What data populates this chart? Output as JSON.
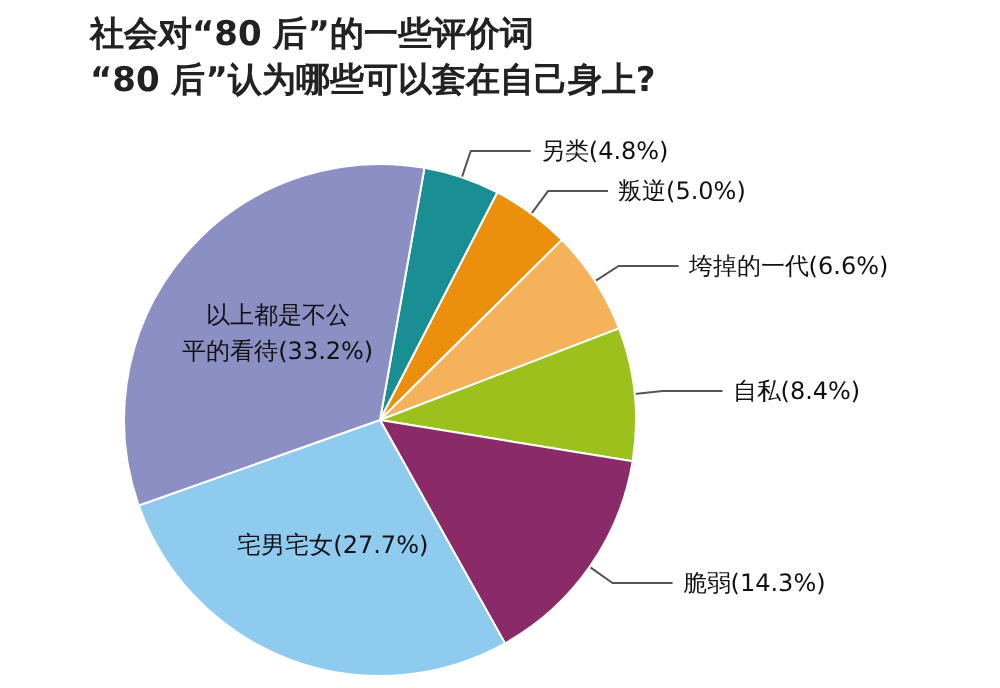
{
  "chart_data": {
    "type": "pie",
    "title": "社会对“80 后”的一些评价词",
    "subtitle": "“80 后”认为哪些可以套在自己身上?",
    "categories": [
      "另类",
      "叛逆",
      "垮掉的一代",
      "自私",
      "脆弱",
      "宅男宅女",
      "以上都是不公平的看待"
    ],
    "values": [
      4.8,
      5.0,
      6.6,
      8.4,
      14.3,
      27.7,
      33.2
    ],
    "value_labels": [
      "(4.8%)",
      "(5.0%)",
      "(6.6%)",
      "(8.4%)",
      "(14.3%)",
      "(27.7%)",
      "(33.2%)"
    ],
    "colors": [
      "#1a8f93",
      "#ec8f0c",
      "#f4b25a",
      "#9dc11c",
      "#8b2a68",
      "#8ecbef",
      "#8c8fc3"
    ],
    "legend": false
  }
}
